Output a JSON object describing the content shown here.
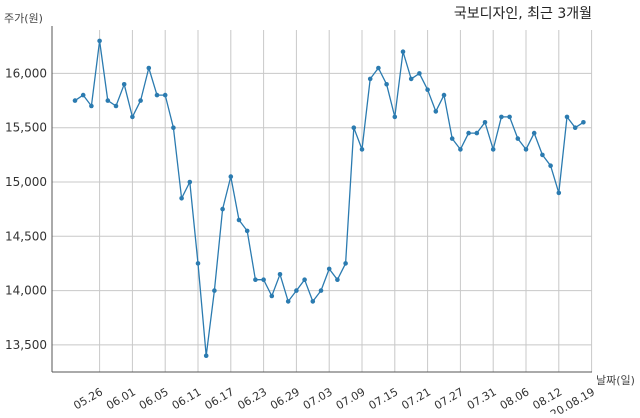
{
  "chart_data": {
    "type": "line",
    "title": "국보디자인, 최근 3개월",
    "ylabel": "주가(원)",
    "xlabel": "날짜(일)",
    "ylim": [
      13250,
      16400
    ],
    "yticks": [
      13500,
      14000,
      14500,
      15000,
      15500,
      16000
    ],
    "ytick_labels": [
      "13,500",
      "14,000",
      "14,500",
      "15,000",
      "15,500",
      "16,000"
    ],
    "xtick_labels": [
      "05.26",
      "06.01",
      "06.05",
      "06.11",
      "06.17",
      "06.23",
      "06.29",
      "07.03",
      "07.09",
      "07.15",
      "07.21",
      "07.27",
      "07.31",
      "08.06",
      "08.12",
      "20.08.19"
    ],
    "xtick_index": [
      3,
      7,
      11,
      15,
      19,
      23,
      27,
      31,
      35,
      39,
      43,
      47,
      51,
      55,
      59,
      63
    ],
    "grid": true,
    "line_color": "#2b7bb0",
    "grid_color": "#c8c8c8",
    "series": [
      {
        "values": [
          15750,
          15800,
          15700,
          16300,
          15750,
          15700,
          15900,
          15600,
          15750,
          16050,
          15800,
          15800,
          15500,
          14850,
          15000,
          14250,
          13400,
          14000,
          14750,
          15050,
          14650,
          14550,
          14100,
          14100,
          13950,
          14150,
          13900,
          14000,
          14100,
          13900,
          14000,
          14200,
          14100,
          14250,
          15500,
          15300,
          15950,
          16050,
          15900,
          15600,
          16200,
          15950,
          16000,
          15850,
          15650,
          15800,
          15400,
          15300,
          15450,
          15450,
          15550,
          15300,
          15600,
          15600,
          15400,
          15300,
          15450,
          15250,
          15150,
          14900,
          15600,
          15500,
          15550
        ]
      }
    ]
  }
}
